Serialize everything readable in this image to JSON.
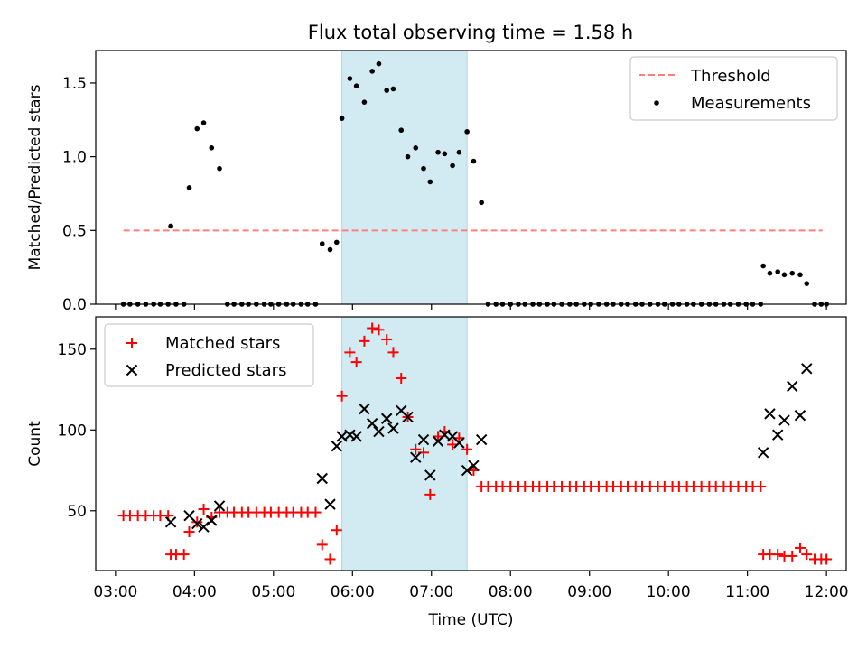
{
  "figure": {
    "title": "Flux total observing time = 1.58 h"
  },
  "colors": {
    "threshold": "#ff7f7f",
    "measurements": "#000000",
    "matched": "#ff0000",
    "predicted": "#000000",
    "shade": "#add8e6"
  },
  "chart_data": [
    {
      "type": "scatter",
      "ylabel": "Matched/Predicted stars",
      "ylim": [
        0,
        1.72
      ],
      "xlim": [
        "02:45",
        "12:15"
      ],
      "yticks": [
        0.0,
        0.5,
        1.0,
        1.5
      ],
      "ytick_labels": [
        "0.0",
        "0.5",
        "1.0",
        "1.5"
      ],
      "legend_position": "upper right",
      "shaded_region": [
        "05:52",
        "07:27"
      ],
      "threshold": {
        "name": "Threshold",
        "y": 0.5,
        "x": [
          "03:06",
          "11:57"
        ]
      },
      "series": [
        {
          "name": "Measurements",
          "marker": "dot",
          "points": [
            [
              "03:06",
              0
            ],
            [
              "03:11",
              0
            ],
            [
              "03:17",
              0
            ],
            [
              "03:23",
              0
            ],
            [
              "03:29",
              0
            ],
            [
              "03:34",
              0
            ],
            [
              "03:40",
              0
            ],
            [
              "03:42",
              0.53
            ],
            [
              "03:46",
              0
            ],
            [
              "03:52",
              0
            ],
            [
              "03:56",
              0.79
            ],
            [
              "04:02",
              1.19
            ],
            [
              "04:07",
              1.23
            ],
            [
              "04:13",
              1.06
            ],
            [
              "04:19",
              0.92
            ],
            [
              "04:25",
              0
            ],
            [
              "04:30",
              0
            ],
            [
              "04:36",
              0
            ],
            [
              "04:41",
              0
            ],
            [
              "04:47",
              0
            ],
            [
              "04:53",
              0
            ],
            [
              "04:58",
              0
            ],
            [
              "05:04",
              0
            ],
            [
              "05:10",
              0
            ],
            [
              "05:15",
              0
            ],
            [
              "05:21",
              0
            ],
            [
              "05:26",
              0
            ],
            [
              "05:32",
              0
            ],
            [
              "05:37",
              0.41
            ],
            [
              "05:43",
              0.37
            ],
            [
              "05:48",
              0.42
            ],
            [
              "05:52",
              1.26
            ],
            [
              "05:58",
              1.53
            ],
            [
              "06:03",
              1.48
            ],
            [
              "06:09",
              1.37
            ],
            [
              "06:15",
              1.58
            ],
            [
              "06:20",
              1.63
            ],
            [
              "06:26",
              1.45
            ],
            [
              "06:31",
              1.46
            ],
            [
              "06:37",
              1.18
            ],
            [
              "06:42",
              1.0
            ],
            [
              "06:48",
              1.06
            ],
            [
              "06:54",
              0.92
            ],
            [
              "06:59",
              0.83
            ],
            [
              "07:05",
              1.03
            ],
            [
              "07:10",
              1.02
            ],
            [
              "07:16",
              0.94
            ],
            [
              "07:21",
              1.03
            ],
            [
              "07:27",
              1.17
            ],
            [
              "07:32",
              0.97
            ],
            [
              "07:38",
              0.69
            ],
            [
              "07:43",
              0
            ],
            [
              "07:49",
              0
            ],
            [
              "07:54",
              0
            ],
            [
              "08:00",
              0
            ],
            [
              "08:06",
              0
            ],
            [
              "08:11",
              0
            ],
            [
              "08:17",
              0
            ],
            [
              "08:22",
              0
            ],
            [
              "08:28",
              0
            ],
            [
              "08:33",
              0
            ],
            [
              "08:39",
              0
            ],
            [
              "08:45",
              0
            ],
            [
              "08:50",
              0
            ],
            [
              "08:56",
              0
            ],
            [
              "09:01",
              0
            ],
            [
              "09:07",
              0
            ],
            [
              "09:13",
              0
            ],
            [
              "09:18",
              0
            ],
            [
              "09:24",
              0
            ],
            [
              "09:29",
              0
            ],
            [
              "09:35",
              0
            ],
            [
              "09:40",
              0
            ],
            [
              "09:46",
              0
            ],
            [
              "09:52",
              0
            ],
            [
              "09:57",
              0
            ],
            [
              "10:03",
              0
            ],
            [
              "10:08",
              0
            ],
            [
              "10:14",
              0
            ],
            [
              "10:19",
              0
            ],
            [
              "10:25",
              0
            ],
            [
              "10:31",
              0
            ],
            [
              "10:36",
              0
            ],
            [
              "10:42",
              0
            ],
            [
              "10:47",
              0
            ],
            [
              "10:53",
              0
            ],
            [
              "10:59",
              0
            ],
            [
              "11:04",
              0
            ],
            [
              "11:10",
              0
            ],
            [
              "11:12",
              0.26
            ],
            [
              "11:17",
              0.21
            ],
            [
              "11:23",
              0.22
            ],
            [
              "11:28",
              0.2
            ],
            [
              "11:34",
              0.21
            ],
            [
              "11:40",
              0.2
            ],
            [
              "11:45",
              0.14
            ],
            [
              "11:51",
              0
            ],
            [
              "11:56",
              0
            ],
            [
              "12:00",
              0
            ]
          ]
        }
      ]
    },
    {
      "type": "scatter",
      "xlabel": "Time (UTC)",
      "ylabel": "Count",
      "ylim": [
        13,
        170
      ],
      "xlim": [
        "02:45",
        "12:15"
      ],
      "yticks": [
        50,
        100,
        150
      ],
      "ytick_labels": [
        "50",
        "100",
        "150"
      ],
      "xticks": [
        "03:00",
        "04:00",
        "05:00",
        "06:00",
        "07:00",
        "08:00",
        "09:00",
        "10:00",
        "11:00",
        "12:00"
      ],
      "legend_position": "upper left",
      "shaded_region": [
        "05:52",
        "07:27"
      ],
      "series": [
        {
          "name": "Matched stars",
          "marker": "plus",
          "points": [
            [
              "03:06",
              47
            ],
            [
              "03:11",
              47
            ],
            [
              "03:17",
              47
            ],
            [
              "03:23",
              47
            ],
            [
              "03:29",
              47
            ],
            [
              "03:34",
              47
            ],
            [
              "03:40",
              47
            ],
            [
              "03:42",
              23
            ],
            [
              "03:46",
              23
            ],
            [
              "03:52",
              23
            ],
            [
              "03:56",
              37
            ],
            [
              "04:02",
              43
            ],
            [
              "04:07",
              51
            ],
            [
              "04:13",
              46
            ],
            [
              "04:19",
              49
            ],
            [
              "04:25",
              49
            ],
            [
              "04:30",
              49
            ],
            [
              "04:36",
              49
            ],
            [
              "04:41",
              49
            ],
            [
              "04:47",
              49
            ],
            [
              "04:53",
              49
            ],
            [
              "04:58",
              49
            ],
            [
              "05:04",
              49
            ],
            [
              "05:10",
              49
            ],
            [
              "05:15",
              49
            ],
            [
              "05:21",
              49
            ],
            [
              "05:26",
              49
            ],
            [
              "05:32",
              49
            ],
            [
              "05:37",
              29
            ],
            [
              "05:43",
              20
            ],
            [
              "05:48",
              38
            ],
            [
              "05:52",
              121
            ],
            [
              "05:58",
              148
            ],
            [
              "06:03",
              142
            ],
            [
              "06:09",
              155
            ],
            [
              "06:15",
              163
            ],
            [
              "06:20",
              162
            ],
            [
              "06:26",
              156
            ],
            [
              "06:31",
              148
            ],
            [
              "06:37",
              132
            ],
            [
              "06:42",
              108
            ],
            [
              "06:48",
              88
            ],
            [
              "06:54",
              86
            ],
            [
              "06:59",
              60
            ],
            [
              "07:05",
              96
            ],
            [
              "07:10",
              99
            ],
            [
              "07:16",
              91
            ],
            [
              "07:21",
              95
            ],
            [
              "07:27",
              88
            ],
            [
              "07:32",
              75
            ],
            [
              "07:38",
              65
            ],
            [
              "07:43",
              65
            ],
            [
              "07:49",
              65
            ],
            [
              "07:54",
              65
            ],
            [
              "08:00",
              65
            ],
            [
              "08:06",
              65
            ],
            [
              "08:11",
              65
            ],
            [
              "08:17",
              65
            ],
            [
              "08:22",
              65
            ],
            [
              "08:28",
              65
            ],
            [
              "08:33",
              65
            ],
            [
              "08:39",
              65
            ],
            [
              "08:45",
              65
            ],
            [
              "08:50",
              65
            ],
            [
              "08:56",
              65
            ],
            [
              "09:01",
              65
            ],
            [
              "09:07",
              65
            ],
            [
              "09:13",
              65
            ],
            [
              "09:18",
              65
            ],
            [
              "09:24",
              65
            ],
            [
              "09:29",
              65
            ],
            [
              "09:35",
              65
            ],
            [
              "09:40",
              65
            ],
            [
              "09:46",
              65
            ],
            [
              "09:52",
              65
            ],
            [
              "09:57",
              65
            ],
            [
              "10:03",
              65
            ],
            [
              "10:08",
              65
            ],
            [
              "10:14",
              65
            ],
            [
              "10:19",
              65
            ],
            [
              "10:25",
              65
            ],
            [
              "10:31",
              65
            ],
            [
              "10:36",
              65
            ],
            [
              "10:42",
              65
            ],
            [
              "10:47",
              65
            ],
            [
              "10:53",
              65
            ],
            [
              "10:59",
              65
            ],
            [
              "11:04",
              65
            ],
            [
              "11:10",
              65
            ],
            [
              "11:12",
              23
            ],
            [
              "11:17",
              23
            ],
            [
              "11:23",
              23
            ],
            [
              "11:28",
              22
            ],
            [
              "11:34",
              22
            ],
            [
              "11:40",
              27
            ],
            [
              "11:45",
              23
            ],
            [
              "11:51",
              20
            ],
            [
              "11:56",
              20
            ],
            [
              "12:00",
              20
            ]
          ]
        },
        {
          "name": "Predicted stars",
          "marker": "x",
          "points": [
            [
              "03:42",
              43
            ],
            [
              "03:56",
              47
            ],
            [
              "04:02",
              42
            ],
            [
              "04:07",
              40
            ],
            [
              "04:13",
              44
            ],
            [
              "04:19",
              53
            ],
            [
              "05:37",
              70
            ],
            [
              "05:43",
              54
            ],
            [
              "05:48",
              90
            ],
            [
              "05:52",
              96
            ],
            [
              "05:58",
              97
            ],
            [
              "06:03",
              96
            ],
            [
              "06:09",
              113
            ],
            [
              "06:15",
              104
            ],
            [
              "06:20",
              99
            ],
            [
              "06:26",
              107
            ],
            [
              "06:31",
              101
            ],
            [
              "06:37",
              112
            ],
            [
              "06:42",
              108
            ],
            [
              "06:48",
              83
            ],
            [
              "06:54",
              94
            ],
            [
              "06:59",
              72
            ],
            [
              "07:05",
              93
            ],
            [
              "07:10",
              97
            ],
            [
              "07:16",
              96
            ],
            [
              "07:21",
              92
            ],
            [
              "07:27",
              75
            ],
            [
              "07:32",
              78
            ],
            [
              "07:38",
              94
            ],
            [
              "11:12",
              86
            ],
            [
              "11:17",
              110
            ],
            [
              "11:23",
              97
            ],
            [
              "11:28",
              106
            ],
            [
              "11:34",
              127
            ],
            [
              "11:40",
              109
            ],
            [
              "11:45",
              138
            ]
          ]
        }
      ]
    }
  ]
}
